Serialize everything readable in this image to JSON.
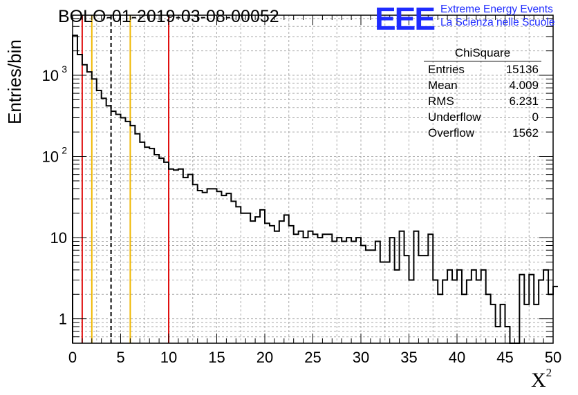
{
  "title": "BOLO-01-2019-03-08-00052",
  "logo": {
    "mark": "EEE",
    "line1": "Extreme Energy Events",
    "line2": "La Scienza nelle Scuole",
    "color": "#1f2cff"
  },
  "stats_box": {
    "name": "ChiSquare",
    "rows": [
      {
        "label": "Entries",
        "value": "15136"
      },
      {
        "label": "Mean",
        "value": "4.009"
      },
      {
        "label": "RMS",
        "value": "6.231"
      },
      {
        "label": "Underflow",
        "value": "0"
      },
      {
        "label": "Overflow",
        "value": "1562"
      }
    ]
  },
  "chart_data": {
    "type": "bar",
    "subtype": "histogram-step",
    "xlabel": "X",
    "xlabel_superscript": "2",
    "ylabel": "Entries/bin",
    "xlim": [
      0,
      50
    ],
    "ylim": [
      0.5,
      5500
    ],
    "yscale": "log",
    "grid": true,
    "bin_width": 0.5,
    "xticks": [
      "0",
      "5",
      "10",
      "15",
      "20",
      "25",
      "30",
      "35",
      "40",
      "45",
      "50"
    ],
    "yticks": [
      {
        "value": 1,
        "label": "1"
      },
      {
        "value": 10,
        "label": "10"
      },
      {
        "value": 100,
        "label": "10",
        "exp": "2"
      },
      {
        "value": 1000,
        "label": "10",
        "exp": "3"
      }
    ],
    "values": [
      3100,
      1800,
      1350,
      1100,
      900,
      650,
      520,
      420,
      360,
      330,
      300,
      270,
      240,
      190,
      150,
      130,
      125,
      105,
      95,
      85,
      70,
      68,
      70,
      55,
      60,
      45,
      38,
      36,
      40,
      40,
      37,
      33,
      35,
      28,
      24,
      20,
      20,
      16,
      18,
      22,
      15,
      14,
      12,
      16,
      19,
      14,
      11,
      12,
      10,
      12,
      11,
      10,
      11,
      11,
      9,
      10,
      9,
      10,
      9,
      10,
      8,
      7,
      7,
      9,
      5,
      5,
      10,
      4,
      12,
      6,
      3,
      12,
      6,
      6,
      11,
      3,
      2,
      3,
      4,
      3,
      4,
      2,
      3,
      4,
      3,
      4,
      2,
      1.5,
      0.8,
      1.5,
      0.8,
      0.3,
      0.3,
      3.5,
      1.5,
      3.5,
      1.5,
      3,
      4,
      2,
      2.5
    ],
    "values_note_removed": true,
    "vertical_lines": [
      {
        "x": 1,
        "color": "#e01010",
        "style": "solid"
      },
      {
        "x": 2,
        "color": "#f0b800",
        "style": "solid"
      },
      {
        "x": 4,
        "color": "#000000",
        "style": "dashed"
      },
      {
        "x": 6,
        "color": "#f0b800",
        "style": "solid"
      },
      {
        "x": 10,
        "color": "#e01010",
        "style": "solid"
      }
    ]
  }
}
